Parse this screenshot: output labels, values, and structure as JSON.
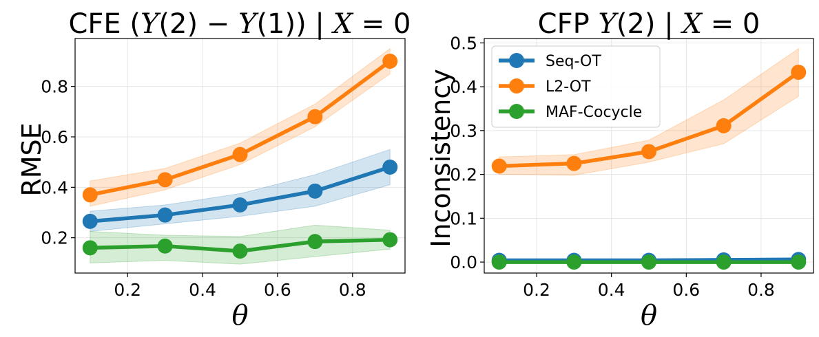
{
  "chart_data": [
    {
      "type": "line",
      "title": "CFE (Y(2) − Y(1)) | X = 0",
      "title_parts": [
        "CFE (",
        "Y",
        "(2) − ",
        "Y",
        "(1)) | ",
        "X",
        " = 0"
      ],
      "xlabel": "θ",
      "ylabel": "RMSE",
      "xlim": [
        0.06,
        0.94
      ],
      "ylim": [
        0.06,
        0.99
      ],
      "xticks": [
        0.2,
        0.4,
        0.6,
        0.8
      ],
      "xtick_labels": [
        "0.2",
        "0.4",
        "0.6",
        "0.8"
      ],
      "yticks": [
        0.2,
        0.4,
        0.6,
        0.8
      ],
      "ytick_labels": [
        "0.2",
        "0.4",
        "0.6",
        "0.8"
      ],
      "grid": true,
      "x": [
        0.1,
        0.3,
        0.5,
        0.7,
        0.9
      ],
      "series": [
        {
          "name": "Seq-OT",
          "color": "#1f77b4",
          "values": [
            0.265,
            0.29,
            0.33,
            0.385,
            0.48
          ],
          "lower": [
            0.225,
            0.255,
            0.285,
            0.325,
            0.41
          ],
          "upper": [
            0.305,
            0.33,
            0.375,
            0.45,
            0.55
          ]
        },
        {
          "name": "L2-OT",
          "color": "#ff7f0e",
          "values": [
            0.37,
            0.43,
            0.53,
            0.68,
            0.9
          ],
          "lower": [
            0.325,
            0.39,
            0.49,
            0.64,
            0.85
          ],
          "upper": [
            0.425,
            0.475,
            0.575,
            0.73,
            0.95
          ]
        },
        {
          "name": "MAF-Cocycle",
          "color": "#2ca02c",
          "values": [
            0.16,
            0.167,
            0.147,
            0.185,
            0.192
          ],
          "lower": [
            0.1,
            0.11,
            0.095,
            0.125,
            0.155
          ],
          "upper": [
            0.225,
            0.21,
            0.205,
            0.25,
            0.23
          ]
        }
      ]
    },
    {
      "type": "line",
      "title": "CFP Y(2) | X = 0",
      "title_parts": [
        "CFP ",
        "Y",
        "(2) | ",
        "X",
        " = 0"
      ],
      "xlabel": "θ",
      "ylabel": "Inconsistency",
      "xlim": [
        0.06,
        0.94
      ],
      "ylim": [
        -0.025,
        0.51
      ],
      "xticks": [
        0.2,
        0.4,
        0.6,
        0.8
      ],
      "xtick_labels": [
        "0.2",
        "0.4",
        "0.6",
        "0.8"
      ],
      "yticks": [
        0.0,
        0.1,
        0.2,
        0.3,
        0.4,
        0.5
      ],
      "ytick_labels": [
        "0.0",
        "0.1",
        "0.2",
        "0.3",
        "0.4",
        "0.5"
      ],
      "grid": true,
      "legend": "top-left",
      "x": [
        0.1,
        0.3,
        0.5,
        0.7,
        0.9
      ],
      "series": [
        {
          "name": "Seq-OT",
          "color": "#1f77b4",
          "values": [
            0.004,
            0.004,
            0.004,
            0.005,
            0.006
          ],
          "lower": [
            0.001,
            0.001,
            0.001,
            0.002,
            0.002
          ],
          "upper": [
            0.007,
            0.007,
            0.007,
            0.008,
            0.01
          ]
        },
        {
          "name": "L2-OT",
          "color": "#ff7f0e",
          "values": [
            0.219,
            0.225,
            0.252,
            0.311,
            0.433
          ],
          "lower": [
            0.2,
            0.198,
            0.228,
            0.27,
            0.378
          ],
          "upper": [
            0.24,
            0.245,
            0.278,
            0.37,
            0.487
          ]
        },
        {
          "name": "MAF-Cocycle",
          "color": "#2ca02c",
          "values": [
            0.0,
            0.0,
            0.0,
            0.0,
            0.0
          ],
          "lower": [
            0.0,
            0.0,
            0.0,
            0.0,
            0.0
          ],
          "upper": [
            0.002,
            0.002,
            0.002,
            0.002,
            0.002
          ]
        }
      ]
    }
  ]
}
